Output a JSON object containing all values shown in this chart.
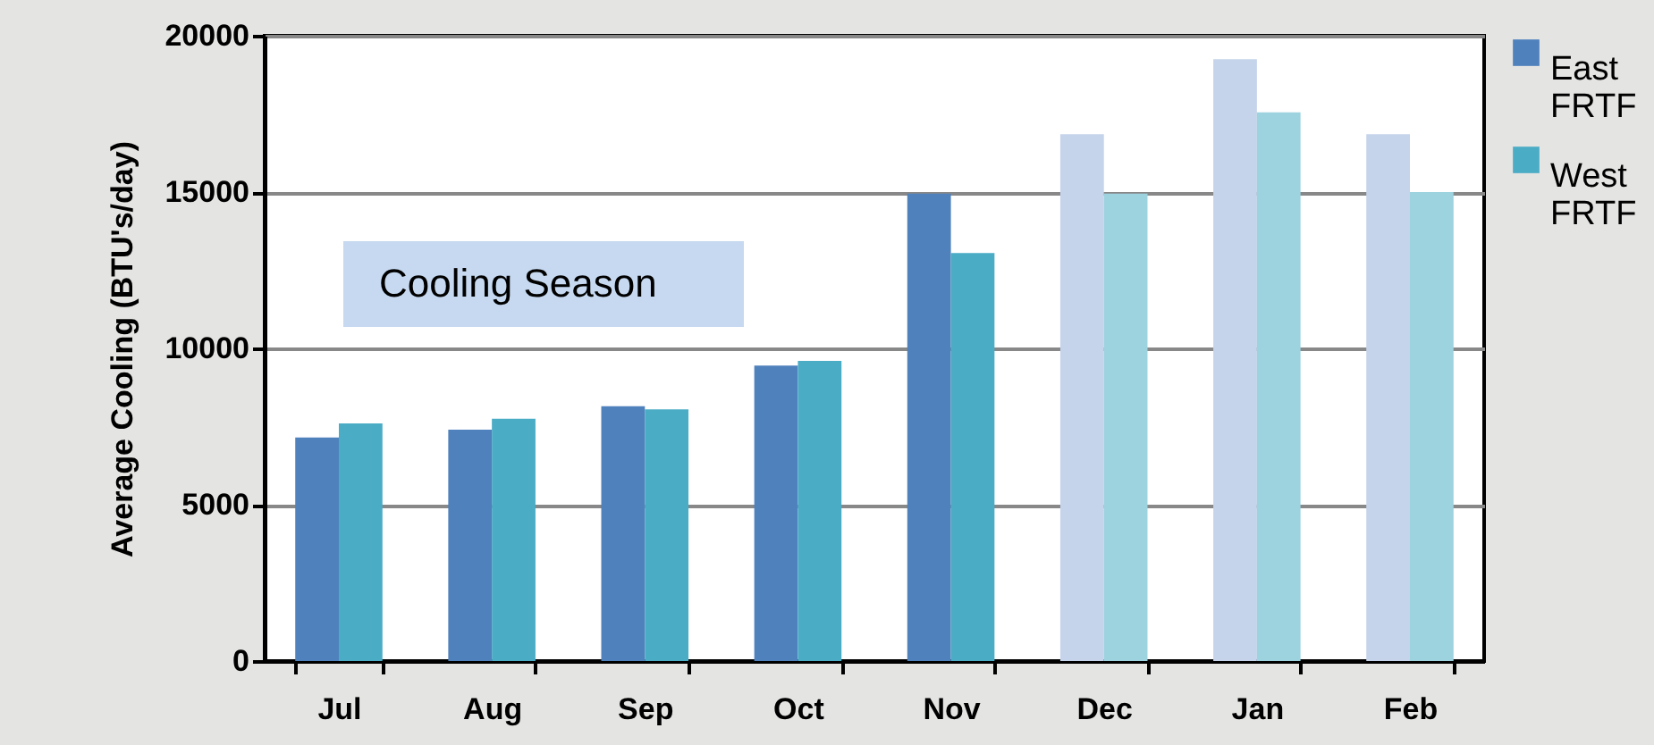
{
  "chart_data": {
    "type": "bar",
    "ylabel": "Average Cooling (BTU's/day)",
    "categories": [
      "Jul",
      "Aug",
      "Sep",
      "Oct",
      "Nov",
      "Dec",
      "Jan",
      "Feb"
    ],
    "series": [
      {
        "name": "East FRTF",
        "color": "#4f81bd",
        "colors": [
          "#4f81bd",
          "#4f81bd",
          "#4f81bd",
          "#4f81bd",
          "#4f81bd",
          "#c5d4ea",
          "#c5d4ea",
          "#c5d4ea"
        ],
        "values": [
          7150,
          7400,
          8150,
          9450,
          14950,
          16850,
          19250,
          16850
        ]
      },
      {
        "name": "West FRTF",
        "color": "#4bacc6",
        "colors": [
          "#4bacc6",
          "#4bacc6",
          "#4bacc6",
          "#4bacc6",
          "#4bacc6",
          "#9dd2df",
          "#9dd2df",
          "#9dd2df"
        ],
        "values": [
          7600,
          7750,
          8050,
          9600,
          13050,
          14950,
          17550,
          15000
        ]
      }
    ],
    "ylim": [
      0,
      20000
    ],
    "yticks": [
      0,
      5000,
      10000,
      15000,
      20000
    ],
    "grid": "y",
    "legend": "right",
    "annotations": [
      "Cooling Season"
    ]
  }
}
